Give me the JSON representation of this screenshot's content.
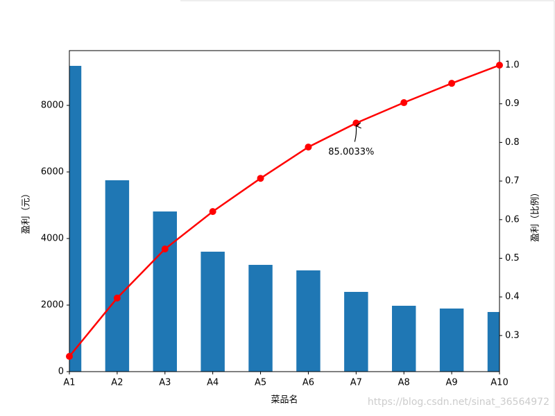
{
  "chart_data": {
    "type": "bar",
    "categories": [
      "A1",
      "A2",
      "A3",
      "A4",
      "A5",
      "A6",
      "A7",
      "A8",
      "A9",
      "A10"
    ],
    "series": [
      {
        "type": "bar",
        "color": "#1f77b4",
        "values": [
          9188,
          5750,
          4812,
          3604,
          3208,
          3042,
          2396,
          1979,
          1896,
          1792
        ]
      },
      {
        "type": "line",
        "axis": "y2",
        "color": "#ff0000",
        "values": [
          0.246,
          0.397,
          0.524,
          0.621,
          0.707,
          0.788,
          0.850033,
          0.903,
          0.953,
          1.0
        ]
      }
    ],
    "xlabel": "菜品名",
    "ylabel": "盈利（元）",
    "y2label": "盈利（比例）",
    "ylim": [
      0,
      9646
    ],
    "yticks": [
      0,
      2000,
      4000,
      6000,
      8000
    ],
    "y2lim": [
      0.2065,
      1.0377
    ],
    "y2ticks": [
      0.3,
      0.4,
      0.5,
      0.6,
      0.7,
      0.8,
      0.9,
      {
        "value": 1,
        "label": "1.0"
      }
    ],
    "annotation": {
      "text": "85.0033%",
      "series": 1,
      "index": 6
    },
    "watermark": "https://blog.csdn.net/sinat_36564972"
  }
}
